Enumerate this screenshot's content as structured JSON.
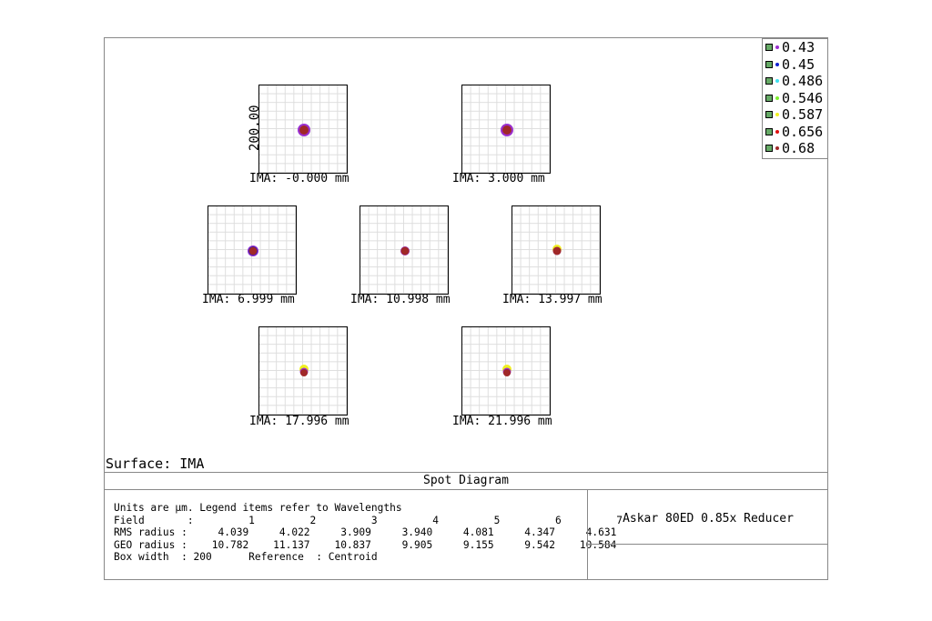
{
  "plot": {
    "axis_label": "200.00",
    "surface_label": "Surface: IMA"
  },
  "fields": [
    {
      "label": "IMA: -0.000 mm"
    },
    {
      "label": "IMA: 3.000 mm"
    },
    {
      "label": "IMA: 6.999 mm"
    },
    {
      "label": "IMA: 10.998 mm"
    },
    {
      "label": "IMA: 13.997 mm"
    },
    {
      "label": "IMA: 17.996 mm"
    },
    {
      "label": "IMA: 21.996 mm"
    }
  ],
  "legend": [
    {
      "label": "0.43",
      "color": "#9b30d0"
    },
    {
      "label": "0.45",
      "color": "#1020d0"
    },
    {
      "label": "0.486",
      "color": "#40e0f0"
    },
    {
      "label": "0.546",
      "color": "#80f030"
    },
    {
      "label": "0.587",
      "color": "#f0f020"
    },
    {
      "label": "0.656",
      "color": "#e01010"
    },
    {
      "label": "0.68",
      "color": "#a02828"
    }
  ],
  "title": "Spot Diagram",
  "stats": {
    "line1": "Units are µm. Legend items refer to Wavelengths",
    "field": "Field       :         1         2         3         4         5         6         7",
    "rms": "RMS radius :     4.039     4.022     3.909     3.940     4.081     4.347     4.631",
    "geo": "GEO radius :    10.782    11.137    10.837     9.905     9.155     9.542    10.584",
    "box": "Box width  : 200      Reference  : Centroid"
  },
  "system_title": "Askar 80ED 0.85x Reducer"
}
